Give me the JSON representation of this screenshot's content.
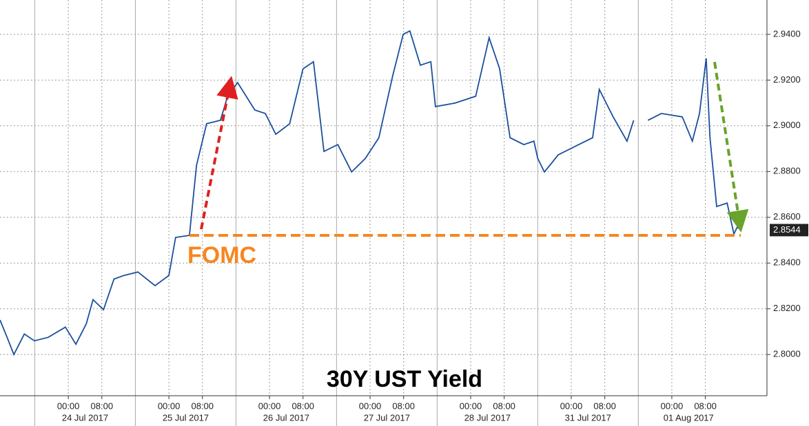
{
  "chart_data": {
    "type": "line",
    "title": "30Y UST Yield",
    "annotation": "FOMC",
    "color": "#1a4f9c",
    "x": [
      -16.3,
      -14.6,
      -13.0,
      -10.5,
      -8.1,
      -4.8,
      -0.7,
      1.8,
      4.3,
      5.9,
      8.4,
      10.9,
      13.3,
      16.6,
      20.7,
      24.0,
      25.6,
      28.9,
      30.6,
      33.0,
      36.3,
      38.0,
      40.4,
      44.5,
      47.0,
      49.5,
      52.8,
      56.0,
      58.5,
      61.0,
      64.3,
      67.6,
      70.9,
      74.1,
      77.4,
      79.9,
      81.5,
      84.0,
      86.5,
      87.6,
      92.2,
      97.2,
      100.4,
      102.9,
      105.4,
      108.7,
      111.1,
      112.0,
      113.6,
      116.9,
      121.8,
      125.1,
      126.7,
      130.0,
      133.3,
      134.9,
      136.6,
      138.3,
      141.5,
      146.5,
      148.9,
      150.6,
      152.2,
      153.1,
      154.7,
      157.2,
      158.8,
      159.6,
      160.5
    ],
    "values": [
      2.8151,
      2.8075,
      2.8,
      2.809,
      2.806,
      2.8075,
      2.812,
      2.8045,
      2.8135,
      2.824,
      2.8196,
      2.833,
      2.8346,
      2.8361,
      2.8301,
      2.8346,
      2.8512,
      2.8521,
      2.8828,
      2.9009,
      2.9024,
      2.9129,
      2.9189,
      2.9069,
      2.9054,
      2.8963,
      2.9009,
      2.9249,
      2.928,
      2.8888,
      2.8918,
      2.8798,
      2.8858,
      2.8948,
      2.9219,
      2.94,
      2.9415,
      2.9265,
      2.928,
      2.9084,
      2.9099,
      2.9129,
      2.9385,
      2.925,
      2.8948,
      2.8918,
      2.8933,
      2.8858,
      2.8798,
      2.8873,
      2.8918,
      2.8948,
      2.9159,
      2.9039,
      2.8933,
      2.9024,
      null,
      2.9024,
      2.9054,
      2.9039,
      2.8933,
      2.9054,
      2.9295,
      2.8948,
      2.8647,
      2.8662,
      2.8527,
      2.8557,
      2.8544
    ],
    "last_value": 2.8544,
    "xlim": [
      -16.3,
      166.7
    ],
    "ylim": [
      2.782,
      2.955
    ],
    "xticks": [
      {
        "value": 0,
        "label": "00:00"
      },
      {
        "value": 8,
        "label": "08:00"
      },
      {
        "value": 24,
        "label": "00:00"
      },
      {
        "value": 32,
        "label": "08:00"
      },
      {
        "value": 48,
        "label": "00:00"
      },
      {
        "value": 56,
        "label": "08:00"
      },
      {
        "value": 72,
        "label": "00:00"
      },
      {
        "value": 80,
        "label": "08:00"
      },
      {
        "value": 96,
        "label": "00:00"
      },
      {
        "value": 104,
        "label": "08:00"
      },
      {
        "value": 120,
        "label": "00:00"
      },
      {
        "value": 128,
        "label": "08:00"
      },
      {
        "value": 144,
        "label": "00:00"
      },
      {
        "value": 152,
        "label": "08:00"
      }
    ],
    "date_labels": [
      {
        "value": 4,
        "label": "24 Jul 2017"
      },
      {
        "value": 28,
        "label": "25 Jul 2017"
      },
      {
        "value": 52,
        "label": "26 Jul 2017"
      },
      {
        "value": 76,
        "label": "27 Jul 2017"
      },
      {
        "value": 100,
        "label": "28 Jul 2017"
      },
      {
        "value": 124,
        "label": "31 Jul 2017"
      },
      {
        "value": 148,
        "label": "01 Aug 2017"
      }
    ],
    "yticks": [
      {
        "value": 2.8,
        "label": "2.8000"
      },
      {
        "value": 2.82,
        "label": "2.8200"
      },
      {
        "value": 2.84,
        "label": "2.8400"
      },
      {
        "value": 2.86,
        "label": "2.8600"
      },
      {
        "value": 2.88,
        "label": "2.8800"
      },
      {
        "value": 2.9,
        "label": "2.9000"
      },
      {
        "value": 2.92,
        "label": "2.9200"
      },
      {
        "value": 2.94,
        "label": "2.9400"
      }
    ],
    "grid": true
  }
}
